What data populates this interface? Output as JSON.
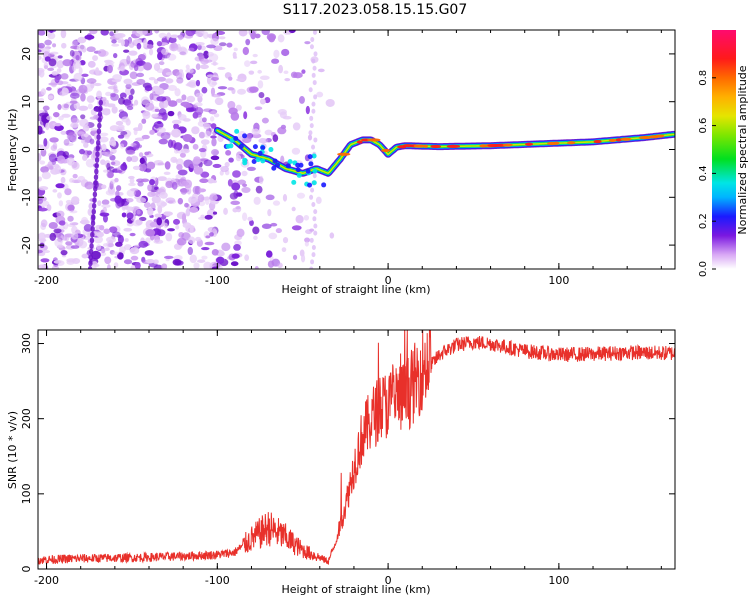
{
  "title": "S117.2023.058.15.15.G07",
  "colors": {
    "snr_line": "#e8302a",
    "axis": "#000000",
    "spectrum_main": "#8a2be2"
  },
  "chart_data": [
    {
      "type": "heatmap",
      "xlabel": "Height of straight line (km)",
      "ylabel": "Frequency (Hz)",
      "xlim": [
        -205,
        168
      ],
      "ylim": [
        -25,
        25
      ],
      "xticks": [
        -200,
        -100,
        0,
        100
      ],
      "xtick_labels": [
        "-200",
        "-100",
        "0",
        "100"
      ],
      "yticks": [
        -20,
        -10,
        0,
        10,
        20
      ],
      "ytick_labels": [
        "-20",
        "-10",
        "0",
        "10",
        "20"
      ],
      "colorbar": {
        "label": "Normalized spectral amplitude",
        "range": [
          0,
          1
        ],
        "ticks": [
          0.0,
          0.2,
          0.4,
          0.6,
          0.8
        ],
        "tick_labels": [
          "0.0",
          "0.2",
          "0.4",
          "0.6",
          "0.8"
        ]
      },
      "ridge": [
        {
          "x": -100,
          "f": 4
        },
        {
          "x": -90,
          "f": 2
        },
        {
          "x": -80,
          "f": -1
        },
        {
          "x": -70,
          "f": -2
        },
        {
          "x": -60,
          "f": -4
        },
        {
          "x": -50,
          "f": -5
        },
        {
          "x": -42,
          "f": -4
        },
        {
          "x": -35,
          "f": -5
        },
        {
          "x": -28,
          "f": -2
        },
        {
          "x": -22,
          "f": 1
        },
        {
          "x": -15,
          "f": 2
        },
        {
          "x": -10,
          "f": 2
        },
        {
          "x": -5,
          "f": 1
        },
        {
          "x": 0,
          "f": -1
        },
        {
          "x": 5,
          "f": 0.5
        },
        {
          "x": 10,
          "f": 0.8
        },
        {
          "x": 30,
          "f": 0.6
        },
        {
          "x": 60,
          "f": 0.8
        },
        {
          "x": 90,
          "f": 1.2
        },
        {
          "x": 120,
          "f": 1.6
        },
        {
          "x": 150,
          "f": 2.5
        },
        {
          "x": 168,
          "f": 3.2
        }
      ]
    },
    {
      "type": "line",
      "xlabel": "Height of straight line (km)",
      "ylabel": "SNR (10 * v/v)",
      "xlim": [
        -205,
        168
      ],
      "ylim": [
        0,
        318
      ],
      "xticks": [
        -200,
        -100,
        0,
        100
      ],
      "xtick_labels": [
        "-200",
        "-100",
        "0",
        "100"
      ],
      "yticks": [
        0,
        100,
        200,
        300
      ],
      "ytick_labels": [
        "0",
        "100",
        "200",
        "300"
      ],
      "series": [
        {
          "x": [
            -205,
            -180,
            -150,
            -120,
            -100,
            -90,
            -80,
            -70,
            -60,
            -50,
            -40,
            -35,
            -30,
            -25,
            -20,
            -15,
            -10,
            -5,
            0,
            5,
            10,
            15,
            20,
            25,
            30,
            35,
            40,
            50,
            60,
            80,
            100,
            120,
            140,
            168
          ],
          "y": [
            12,
            14,
            15,
            17,
            19,
            22,
            40,
            55,
            42,
            25,
            15,
            10,
            40,
            80,
            130,
            170,
            190,
            205,
            210,
            215,
            220,
            235,
            255,
            270,
            285,
            292,
            298,
            302,
            300,
            290,
            285,
            286,
            288,
            287
          ]
        }
      ]
    }
  ]
}
